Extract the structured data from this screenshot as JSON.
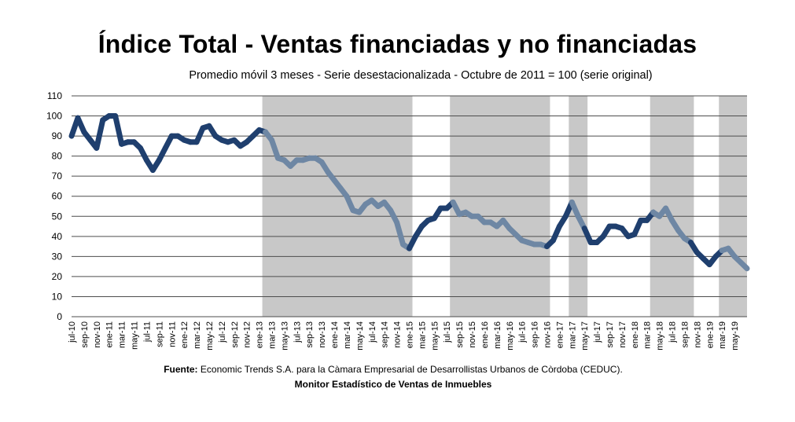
{
  "chart_data": {
    "type": "line",
    "title": "Índice Total - Ventas financiadas y no financiadas",
    "subtitle": "Promedio móvil 3 meses - Serie desestacionalizada - Octubre de 2011 = 100 (serie original)",
    "xlabel": "",
    "ylabel": "",
    "ylim": [
      0,
      110
    ],
    "yticks": [
      "0",
      "10",
      "20",
      "30",
      "40",
      "50",
      "60",
      "70",
      "80",
      "90",
      "100",
      "110"
    ],
    "grid": true,
    "xtick_labels": [
      "jul-10",
      "sep-10",
      "nov-10",
      "ene-11",
      "mar-11",
      "may-11",
      "jul-11",
      "sep-11",
      "nov-11",
      "ene-12",
      "mar-12",
      "may-12",
      "jul-12",
      "sep-12",
      "nov-12",
      "ene-13",
      "mar-13",
      "may-13",
      "jul-13",
      "sep-13",
      "nov-13",
      "ene-14",
      "mar-14",
      "may-14",
      "jul-14",
      "sep-14",
      "nov-14",
      "ene-15",
      "mar-15",
      "may-15",
      "jul-15",
      "sep-15",
      "nov-15",
      "ene-16",
      "mar-16",
      "may-16",
      "jul-16",
      "sep-16",
      "nov-16",
      "ene-17",
      "mar-17",
      "may-17",
      "jul-17",
      "sep-17",
      "nov-17",
      "ene-18",
      "mar-18",
      "may-18",
      "jul-18",
      "sep-18",
      "nov-18",
      "ene-19",
      "mar-19",
      "may-19"
    ],
    "series": [
      {
        "values": [
          90,
          99,
          92,
          88,
          84,
          98,
          100,
          100,
          86,
          87,
          87,
          84,
          78,
          73,
          78,
          84,
          90,
          90,
          88,
          87,
          87,
          94,
          95,
          90,
          88,
          87,
          88,
          85,
          87,
          90,
          93,
          92,
          88,
          79,
          78,
          75,
          78,
          78,
          79,
          79,
          77,
          72,
          68,
          64,
          60,
          53,
          52,
          56,
          58,
          55,
          57,
          53,
          47,
          36,
          34,
          40,
          45,
          48,
          49,
          54,
          54,
          57,
          51,
          52,
          50,
          50,
          47,
          47,
          45,
          48,
          44,
          41,
          38,
          37,
          36,
          36,
          35,
          38,
          45,
          50,
          57,
          50,
          44,
          37,
          37,
          40,
          45,
          45,
          44,
          40,
          41,
          48,
          48,
          52,
          50,
          54,
          48,
          43,
          39,
          37,
          32,
          29,
          26,
          30,
          33,
          34,
          30,
          27,
          24
        ]
      }
    ],
    "shaded_periods": [
      [
        "feb-13",
        "ene-15"
      ],
      [
        "ago-15",
        "nov-16"
      ],
      [
        "mar-17",
        "may-17"
      ],
      [
        "abr-18",
        "oct-18"
      ],
      [
        "mar-19",
        "jul-19"
      ]
    ],
    "colors": {
      "unshaded_line": "#1f3f6e",
      "shaded_line": "#6e87a4",
      "shading": "#c8c8c8",
      "grid": "#4d4d4d"
    }
  },
  "footer": {
    "source_label": "Fuente:",
    "source_text": " Economic Trends S.A. para la Càmara Empresarial de Desarrollistas Urbanos de Còrdoba (CEDUC).",
    "monitor": "Monitor Estadístico de Ventas de Inmuebles"
  }
}
